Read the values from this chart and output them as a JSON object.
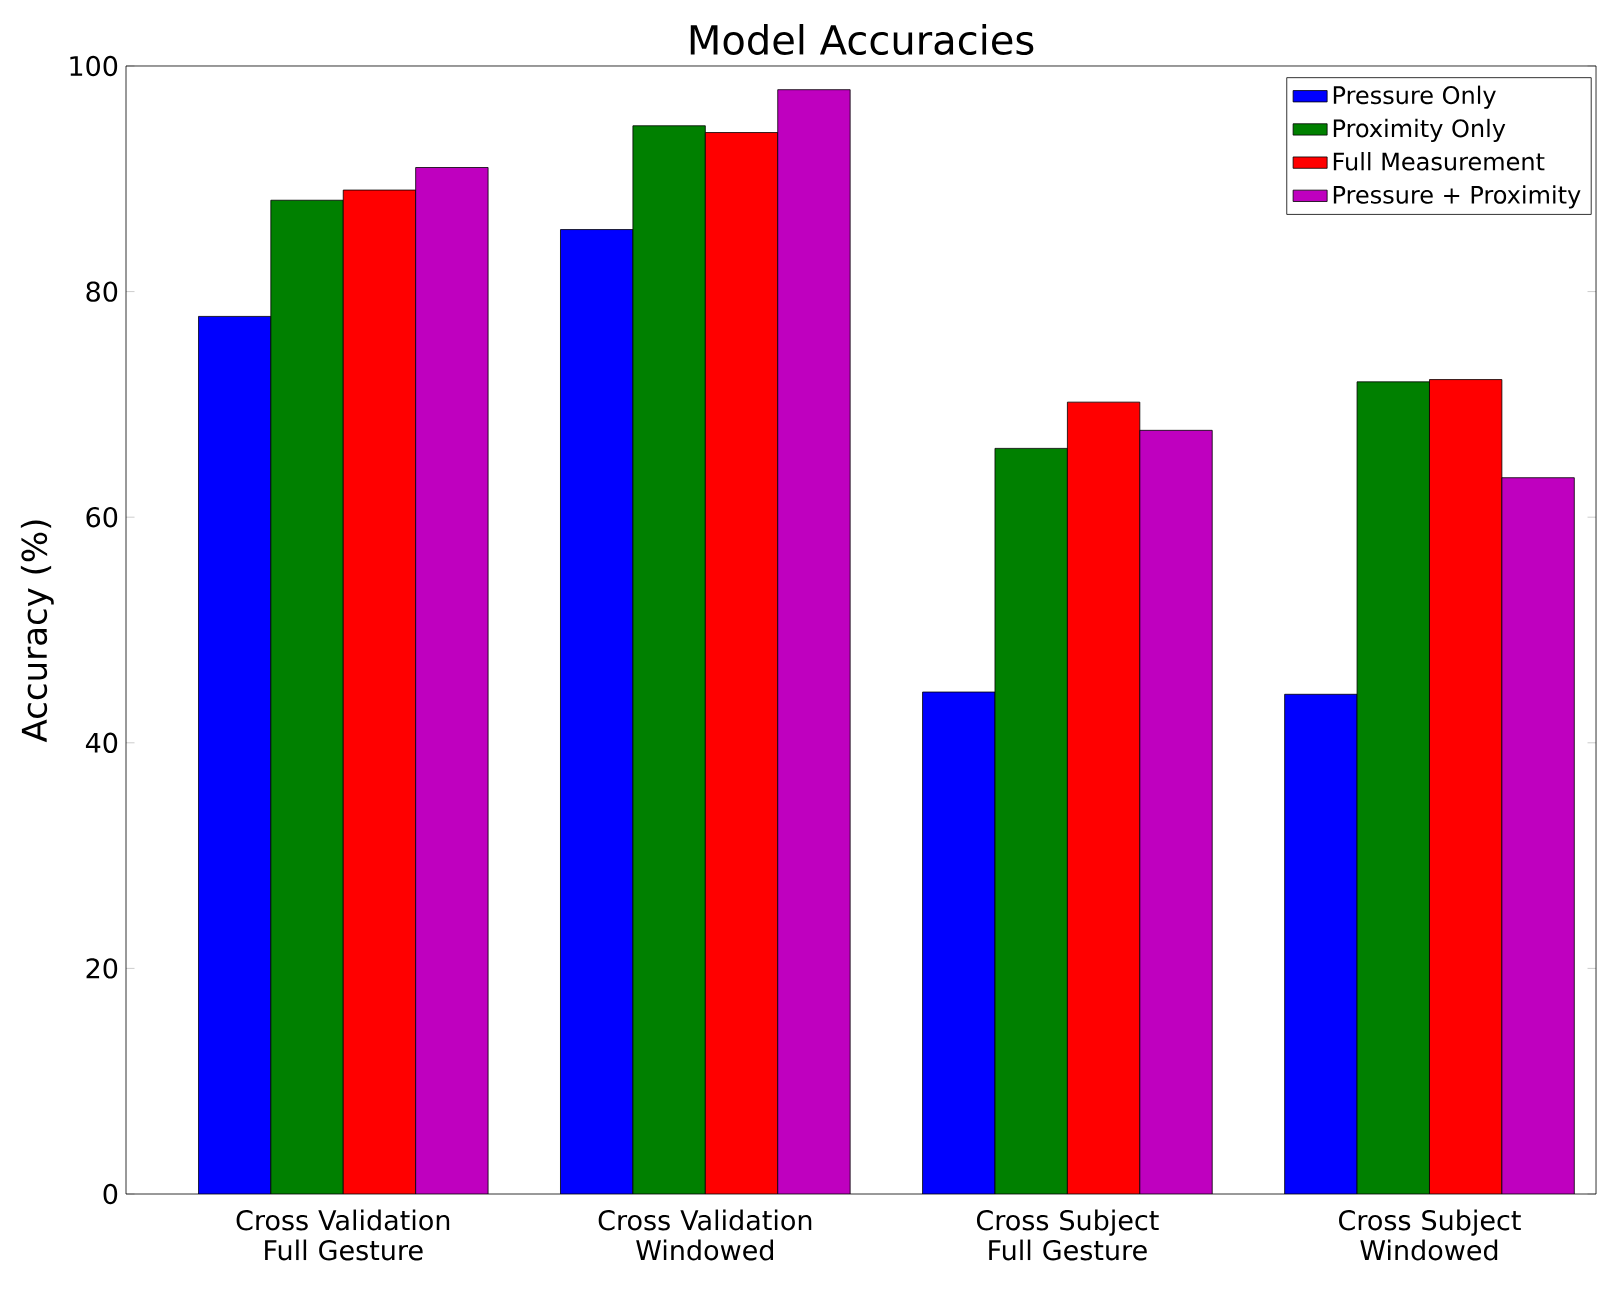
{
  "chart_data": {
    "type": "bar",
    "title": "Model Accuracies",
    "ylabel": "Accuracy (%)",
    "categories": [
      "Cross Validation Full Gesture",
      "Cross Validation Windowed",
      "Cross Subject Full Gesture",
      "Cross Subject Windowed"
    ],
    "series": [
      {
        "name": "Pressure Only",
        "color": "#0000ff",
        "values": [
          77.8,
          85.5,
          44.5,
          44.3
        ]
      },
      {
        "name": "Proximity Only",
        "color": "#008000",
        "values": [
          88.1,
          94.7,
          66.1,
          72.0
        ]
      },
      {
        "name": "Full Measurement",
        "color": "#ff0000",
        "values": [
          89.0,
          94.1,
          70.2,
          72.2
        ]
      },
      {
        "name": "Pressure + Proximity",
        "color": "#bf00bf",
        "values": [
          91.0,
          97.9,
          67.7,
          63.5
        ]
      }
    ],
    "ylim": [
      0,
      100
    ],
    "yticks": [
      0,
      20,
      40,
      60,
      80,
      100
    ],
    "legend": "top right"
  }
}
